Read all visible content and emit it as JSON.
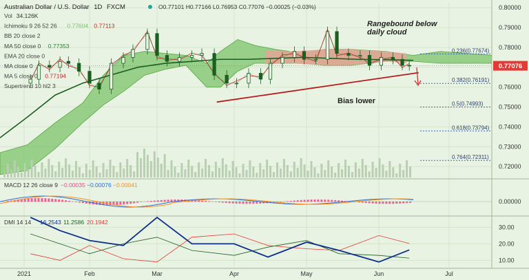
{
  "header": {
    "symbol": "Australian Dollar / U.S. Dollar",
    "timeframe": "1D",
    "source": "FXCM",
    "ohlc_text": "O0.77101 H0.77166 L0.76953 C0.77076 −0.00025 (−0.03%)"
  },
  "indicators": [
    {
      "name": "Vol",
      "values": [
        "34.126K"
      ]
    },
    {
      "name": "Ichimoku 9 26 52 26",
      "values": [
        "0.77604",
        "0.77113"
      ]
    },
    {
      "name": "BB 20 close 2",
      "values": []
    },
    {
      "name": "MA 50 close 0",
      "values": [
        "0.77353"
      ]
    },
    {
      "name": "EMA 20 close 0",
      "values": []
    },
    {
      "name": "MA close 0",
      "values": []
    },
    {
      "name": "MA 5 close 0",
      "values": [
        "0.77194"
      ]
    },
    {
      "name": "Supertrend 10 hl2 3",
      "values": []
    }
  ],
  "annotations": {
    "range_note_line1": "Rangebound below",
    "range_note_line2": "daily cloud",
    "bias_note": "Bias lower"
  },
  "colors": {
    "background": "#e9f3e3",
    "candle": "#1b5e20",
    "cloud": "#7cc36b",
    "cloud_upper_red": "#e6a398",
    "ma50": "#1a5e20",
    "ma5": "#c62828",
    "trendline": "#b71c1c",
    "price_badge": "#e53935",
    "macd_line": "#2b6cd1",
    "signal_line": "#ff8c1a",
    "hist_pos": "#e8478a",
    "dmi_plus": "#1b5e20",
    "dmi_minus": "#e53935",
    "adx": "#0d2f8a",
    "fib": "#2b55a0"
  },
  "chart_data": [
    {
      "type": "line",
      "title": "Australian Dollar / U.S. Dollar · 1D · FXCM",
      "x_labels": [
        "2021",
        "Feb",
        "Mar",
        "Apr",
        "May",
        "Jun",
        "Jul"
      ],
      "x": [
        "2021-01-04",
        "2021-01-08",
        "2021-01-13",
        "2021-01-18",
        "2021-01-22",
        "2021-01-27",
        "2021-02-01",
        "2021-02-05",
        "2021-02-10",
        "2021-02-15",
        "2021-02-19",
        "2021-02-25",
        "2021-03-01",
        "2021-03-05",
        "2021-03-10",
        "2021-03-15",
        "2021-03-19",
        "2021-03-24",
        "2021-03-29",
        "2021-04-02",
        "2021-04-07",
        "2021-04-12",
        "2021-04-16",
        "2021-04-21",
        "2021-04-26",
        "2021-04-30",
        "2021-05-05",
        "2021-05-10",
        "2021-05-14",
        "2021-05-19",
        "2021-05-24",
        "2021-05-28",
        "2021-06-02",
        "2021-06-07",
        "2021-06-11",
        "2021-06-14"
      ],
      "series": [
        {
          "name": "AUDUSD",
          "values": [
            0.764,
            0.771,
            0.77,
            0.773,
            0.772,
            0.768,
            0.762,
            0.759,
            0.772,
            0.775,
            0.779,
            0.787,
            0.776,
            0.773,
            0.775,
            0.776,
            0.777,
            0.766,
            0.762,
            0.762,
            0.767,
            0.764,
            0.772,
            0.775,
            0.778,
            0.774,
            0.774,
            0.788,
            0.777,
            0.776,
            0.776,
            0.771,
            0.775,
            0.774,
            0.771,
            0.7708
          ]
        }
      ],
      "yticks": [
        0.72,
        0.73,
        0.74,
        0.75,
        0.76,
        0.77,
        0.78,
        0.79,
        0.8
      ],
      "ylim": [
        0.7145,
        0.8025
      ],
      "current_price": 0.77076,
      "fibonacci": [
        {
          "label": "0.236(0.77674)",
          "value": 0.77674
        },
        {
          "label": "0.382(0.76191)",
          "value": 0.76191
        },
        {
          "label": "0.5(0.74993)",
          "value": 0.74993
        },
        {
          "label": "0.618(0.73794)",
          "value": 0.73794
        },
        {
          "label": "0.764(0.72311)",
          "value": 0.72311
        }
      ],
      "trendline": {
        "from": [
          "2021-03-25",
          0.7525
        ],
        "to": [
          "2021-06-18",
          0.7673
        ]
      },
      "grid": true
    },
    {
      "type": "bar",
      "title": "MACD 12 26 close 9",
      "header_values": [
        "−0.00035",
        "−0.00076",
        "−0.00041"
      ],
      "yticks": [
        "0.00000"
      ],
      "ylim": [
        -0.008,
        0.008
      ]
    },
    {
      "type": "line",
      "title": "DMI 14 14",
      "header_values": [
        "16.2543",
        "11.2586",
        "20.1942"
      ],
      "x": [
        "2021-01-04",
        "2021-01-18",
        "2021-02-01",
        "2021-02-15",
        "2021-03-01",
        "2021-03-15",
        "2021-04-01",
        "2021-04-15",
        "2021-05-01",
        "2021-05-15",
        "2021-06-01",
        "2021-06-14"
      ],
      "series": [
        {
          "name": "",
          "values": [
            26,
            20,
            14,
            20,
            24,
            16,
            13,
            18,
            22,
            14,
            13,
            11.3
          ]
        },
        {
          "name": "",
          "values": [
            14,
            10,
            19,
            11,
            9,
            24,
            26,
            19,
            17,
            16,
            25,
            20.2
          ]
        },
        {
          "name": "",
          "values": [
            36,
            28,
            22,
            19,
            36,
            20,
            20,
            12,
            21,
            16,
            9,
            16.3
          ]
        }
      ],
      "yticks": [
        10,
        20,
        30
      ],
      "ylim": [
        6,
        36
      ],
      "grid": true
    }
  ]
}
